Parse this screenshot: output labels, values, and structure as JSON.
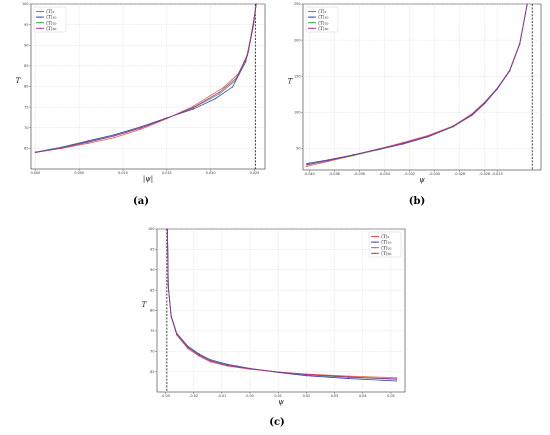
{
  "captions": [
    "(a)",
    "(b)",
    "(c)"
  ],
  "chart_data": [
    {
      "type": "line",
      "panel": "(a)",
      "xlabel": "|ψ|",
      "ylabel": "T",
      "xlim": [
        -0.0005,
        0.0262
      ],
      "ylim": [
        60,
        100
      ],
      "xticks": [
        "0.000",
        "0.005",
        "0.010",
        "0.015",
        "0.020",
        "0.025"
      ],
      "yticks": [
        "65",
        "70",
        "75",
        "80",
        "85",
        "90",
        "95",
        "100"
      ],
      "grid": true,
      "legend": "top-left",
      "vline": 0.0251,
      "series": [
        {
          "name": "⟨T⟩₁",
          "color": "#e8463a",
          "x": [
            0.0,
            0.003,
            0.006,
            0.009,
            0.012,
            0.015,
            0.018,
            0.0215,
            0.0232,
            0.0243,
            0.0249,
            0.0252
          ],
          "y": [
            64.0,
            65.0,
            66.2,
            67.6,
            69.6,
            72.2,
            75.2,
            79.8,
            83.2,
            88.3,
            95.0,
            100.0
          ]
        },
        {
          "name": "⟨T⟩₁₀",
          "color": "#2a2ab8",
          "x": [
            0.0,
            0.003,
            0.006,
            0.009,
            0.012,
            0.015,
            0.018,
            0.0205,
            0.0225,
            0.024,
            0.0248,
            0.0252
          ],
          "y": [
            64.1,
            65.3,
            66.8,
            68.3,
            70.2,
            72.4,
            74.5,
            77.0,
            79.9,
            86.0,
            94.0,
            100.0
          ]
        },
        {
          "name": "⟨T⟩₂₀",
          "color": "#2f9a3a",
          "x": [
            0.0,
            0.003,
            0.006,
            0.009,
            0.012,
            0.015,
            0.018,
            0.021,
            0.0228,
            0.0241,
            0.0248,
            0.0252
          ],
          "y": [
            64.0,
            65.2,
            66.6,
            68.1,
            70.0,
            72.3,
            74.8,
            78.2,
            81.4,
            86.9,
            94.4,
            100.0
          ]
        },
        {
          "name": "⟨T⟩₃₀",
          "color": "#a5239a",
          "x": [
            0.0,
            0.003,
            0.006,
            0.009,
            0.012,
            0.015,
            0.018,
            0.021,
            0.0229,
            0.0242,
            0.0248,
            0.0252
          ],
          "y": [
            64.0,
            65.1,
            66.5,
            68.0,
            69.9,
            72.3,
            74.9,
            78.6,
            82.0,
            87.5,
            94.6,
            100.0
          ]
        }
      ]
    },
    {
      "type": "line",
      "panel": "(b)",
      "xlabel": "ψ",
      "ylabel": "T",
      "xlim": [
        -0.0405,
        -0.0215
      ],
      "ylim": [
        20,
        250
      ],
      "xticks": [
        "-0.040",
        "-0.038",
        "-0.036",
        "-0.034",
        "-0.032",
        "-0.030",
        "-0.028",
        "-0.026",
        "-0.025"
      ],
      "yticks": [
        "50",
        "100",
        "150",
        "200",
        "250"
      ],
      "grid": true,
      "legend": "top-left",
      "vline": -0.0222,
      "series": [
        {
          "name": "⟨T⟩₁",
          "color": "#e8463a",
          "x": [
            -0.0402,
            -0.0385,
            -0.0365,
            -0.0345,
            -0.0325,
            -0.0305,
            -0.0285,
            -0.027,
            -0.026,
            -0.025,
            -0.024,
            -0.0232,
            -0.0226
          ],
          "y": [
            25,
            32,
            40,
            49,
            58,
            68,
            81,
            98,
            114,
            133,
            158,
            195,
            250
          ]
        },
        {
          "name": "⟨T⟩₁₀",
          "color": "#2a2ab8",
          "x": [
            -0.0402,
            -0.0385,
            -0.0365,
            -0.0345,
            -0.0325,
            -0.0305,
            -0.0285,
            -0.027,
            -0.026,
            -0.025,
            -0.024,
            -0.0232,
            -0.0226
          ],
          "y": [
            29,
            34,
            41,
            48,
            56,
            66,
            80,
            96,
            112,
            132,
            157,
            194,
            250
          ]
        },
        {
          "name": "⟨T⟩₂₀",
          "color": "#2f9a3a",
          "x": [
            -0.0402,
            -0.0385,
            -0.0365,
            -0.0345,
            -0.0325,
            -0.0305,
            -0.0285,
            -0.027,
            -0.026,
            -0.025,
            -0.024,
            -0.0232,
            -0.0226
          ],
          "y": [
            28,
            33,
            40,
            48,
            57,
            67,
            80,
            97,
            113,
            133,
            158,
            195,
            250
          ]
        },
        {
          "name": "⟨T⟩₃₀",
          "color": "#a5239a",
          "x": [
            -0.0402,
            -0.0385,
            -0.0365,
            -0.0345,
            -0.0325,
            -0.0305,
            -0.0285,
            -0.027,
            -0.026,
            -0.025,
            -0.024,
            -0.0232,
            -0.0226
          ],
          "y": [
            27,
            33,
            41,
            49,
            57,
            67,
            81,
            97,
            113,
            133,
            158,
            195,
            250
          ]
        }
      ]
    },
    {
      "type": "line",
      "panel": "(c)",
      "xlabel": "ψ",
      "ylabel": "T",
      "xlim": [
        -0.033,
        0.055
      ],
      "ylim": [
        60,
        100
      ],
      "xticks": [
        "-0.03",
        "-0.02",
        "-0.01",
        "0.00",
        "0.01",
        "0.02",
        "0.03",
        "0.04",
        "0.05"
      ],
      "yticks": [
        "65",
        "70",
        "75",
        "80",
        "85",
        "90",
        "95",
        "100"
      ],
      "grid": true,
      "legend": "top-right",
      "vline": -0.0295,
      "series": [
        {
          "name": "⟨T⟩₁",
          "color": "#e8463a",
          "x": [
            -0.0293,
            -0.029,
            -0.028,
            -0.026,
            -0.022,
            -0.018,
            -0.014,
            -0.008,
            0.0,
            0.01,
            0.02,
            0.035,
            0.052
          ],
          "y": [
            100,
            86,
            78.5,
            74.0,
            70.6,
            68.8,
            67.4,
            66.4,
            65.6,
            64.9,
            64.4,
            63.9,
            63.5
          ]
        },
        {
          "name": "⟨T⟩₁₀",
          "color": "#2a2ab8",
          "x": [
            -0.0293,
            -0.029,
            -0.028,
            -0.026,
            -0.022,
            -0.018,
            -0.014,
            -0.008,
            0.0,
            0.01,
            0.02,
            0.035,
            0.052
          ],
          "y": [
            100,
            86,
            78.8,
            74.4,
            71.2,
            69.3,
            67.9,
            66.8,
            65.8,
            64.8,
            64.0,
            63.3,
            62.7
          ]
        },
        {
          "name": "⟨T⟩₂₀",
          "color": "#2f9a3a",
          "x": [
            -0.0293,
            -0.029,
            -0.028,
            -0.026,
            -0.022,
            -0.018,
            -0.014,
            -0.008,
            0.0,
            0.01,
            0.02,
            0.035,
            0.052
          ],
          "y": [
            100,
            86,
            78.7,
            74.3,
            71.0,
            69.1,
            67.7,
            66.6,
            65.7,
            64.9,
            64.2,
            63.6,
            63.1
          ]
        },
        {
          "name": "⟨T⟩₃₀",
          "color": "#a5239a",
          "x": [
            -0.0293,
            -0.029,
            -0.028,
            -0.026,
            -0.022,
            -0.018,
            -0.014,
            -0.008,
            0.0,
            0.01,
            0.02,
            0.035,
            0.052
          ],
          "y": [
            100,
            86,
            78.6,
            74.2,
            70.9,
            69.0,
            67.6,
            66.5,
            65.7,
            64.9,
            64.3,
            63.7,
            63.2
          ]
        }
      ]
    }
  ]
}
